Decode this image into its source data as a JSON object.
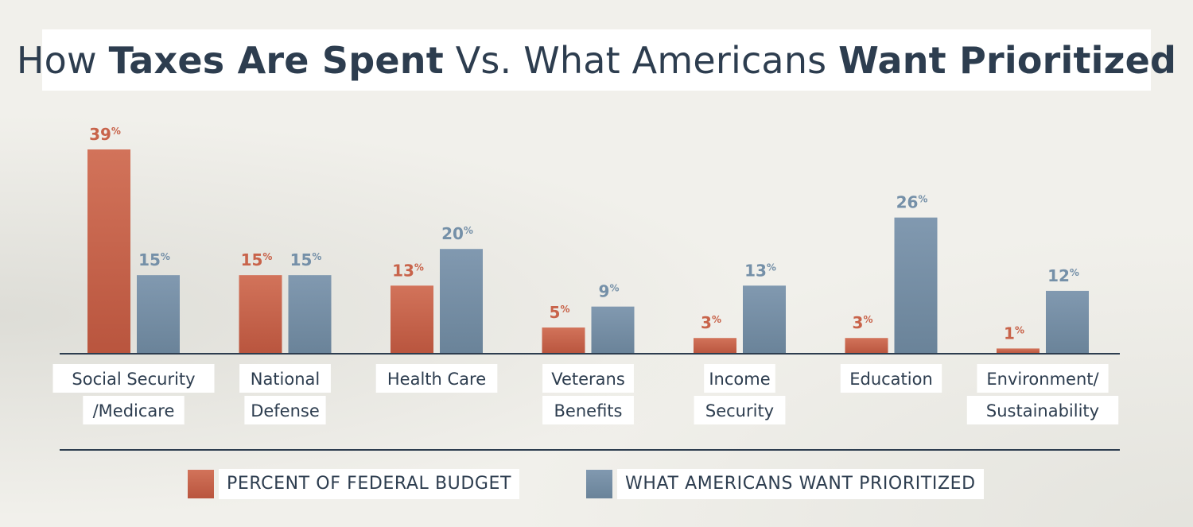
{
  "title": {
    "part1": "How ",
    "part2": "Taxes Are Spent",
    "part3": " Vs. What Americans ",
    "part4": "Want Prioritized"
  },
  "chart_data": {
    "type": "bar",
    "title": "How Taxes Are Spent Vs. What Americans Want Prioritized",
    "categories": [
      [
        "Social Security",
        "/Medicare"
      ],
      [
        "National",
        "Defense"
      ],
      [
        "Health Care"
      ],
      [
        "Veterans",
        "Benefits"
      ],
      [
        "Income",
        "Security"
      ],
      [
        "Education"
      ],
      [
        "Environment/",
        "Sustainability"
      ]
    ],
    "series": [
      {
        "name": "PERCENT OF FEDERAL BUDGET",
        "values": [
          39,
          15,
          13,
          5,
          3,
          3,
          1
        ],
        "color": "#c8634a"
      },
      {
        "name": "WHAT AMERICANS WANT PRIORITIZED",
        "values": [
          15,
          15,
          20,
          9,
          13,
          26,
          12
        ],
        "color": "#7590a8"
      }
    ],
    "value_suffix": "%",
    "ylim": [
      0,
      39
    ],
    "xlabel": "",
    "ylabel": "",
    "legend_position": "bottom"
  }
}
